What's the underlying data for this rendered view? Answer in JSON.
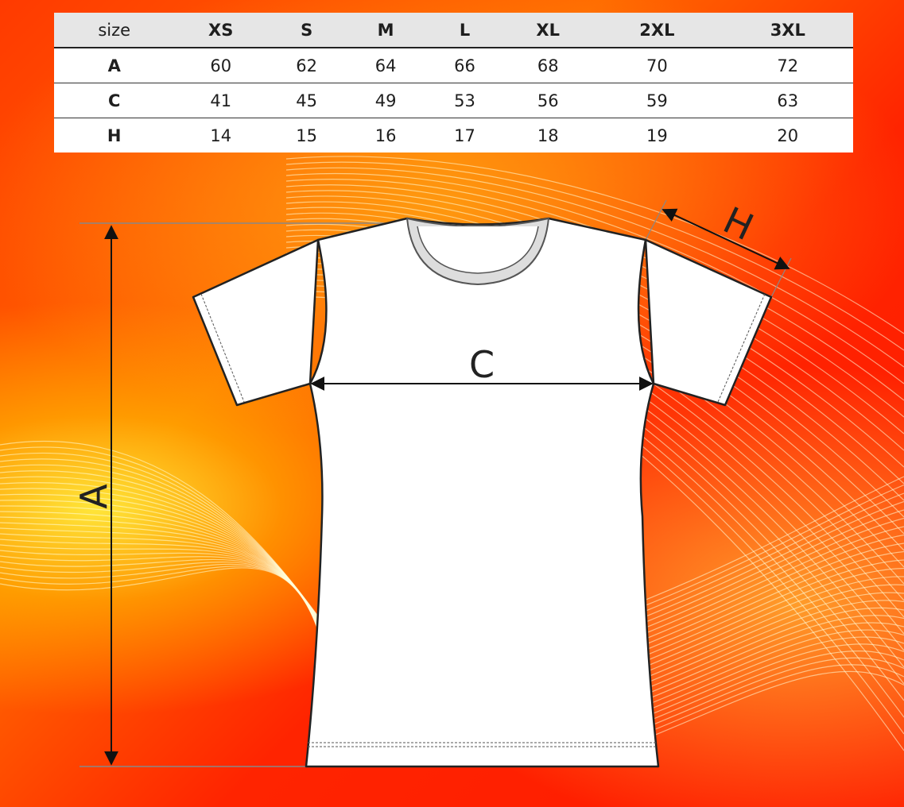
{
  "size_table": {
    "header_label": "size",
    "sizes": [
      "XS",
      "S",
      "M",
      "L",
      "XL",
      "2XL",
      "3XL"
    ],
    "rows": [
      {
        "label": "A",
        "values": [
          "60",
          "62",
          "64",
          "66",
          "68",
          "70",
          "72"
        ]
      },
      {
        "label": "C",
        "values": [
          "41",
          "45",
          "49",
          "53",
          "56",
          "59",
          "63"
        ]
      },
      {
        "label": "H",
        "values": [
          "14",
          "15",
          "16",
          "17",
          "18",
          "19",
          "20"
        ]
      }
    ]
  },
  "diagram": {
    "labels": {
      "length": "A",
      "chest": "C",
      "sleeve": "H"
    }
  },
  "colors": {
    "background_red": "#ff2400",
    "background_yellow": "#ffd400",
    "table_header": "#e6e6e6"
  }
}
